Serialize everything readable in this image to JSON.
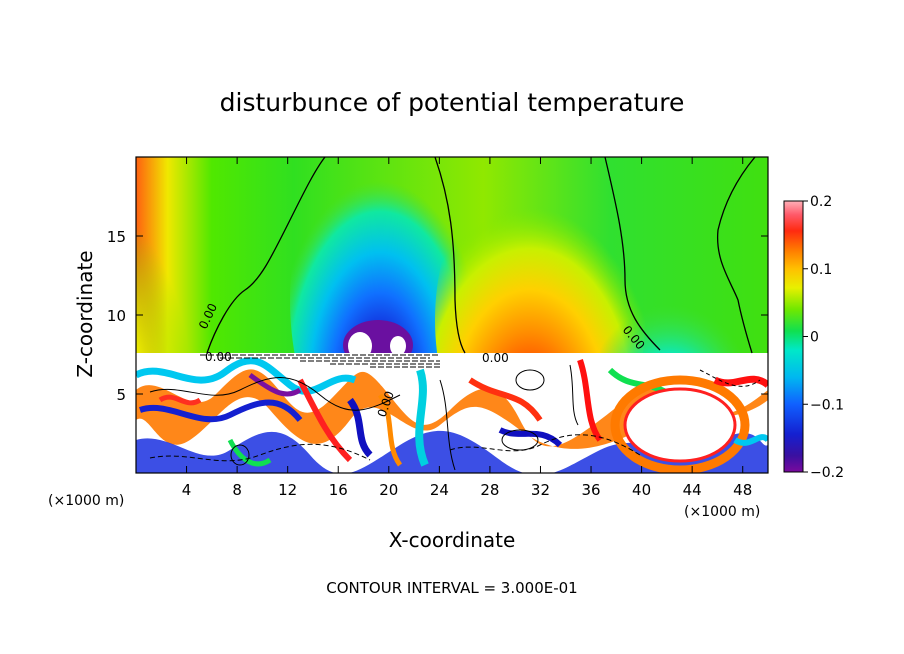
{
  "chart_data": {
    "type": "heatmap",
    "title": "disturbunce of potential temperature",
    "xlabel": "X-coordinate",
    "ylabel": "Z-coordinate",
    "x_unit_left": "(×1000 m)",
    "x_unit_right": "(×1000 m)",
    "x_ticks": [
      "4",
      "8",
      "12",
      "16",
      "20",
      "24",
      "28",
      "32",
      "36",
      "40",
      "44",
      "48"
    ],
    "y_ticks": [
      "5",
      "10",
      "15"
    ],
    "xlim": [
      0,
      50
    ],
    "ylim": [
      0,
      20
    ],
    "colorbar": {
      "ticks": [
        "0.2",
        "0.1",
        "0",
        "−0.1",
        "−0.2"
      ],
      "range": [
        -0.2,
        0.2
      ]
    },
    "contour_labels": [
      "0.00",
      "0.00",
      "0.00",
      "0.00",
      "0.00"
    ],
    "footnote": "CONTOUR INTERVAL = 3.000E-01"
  }
}
